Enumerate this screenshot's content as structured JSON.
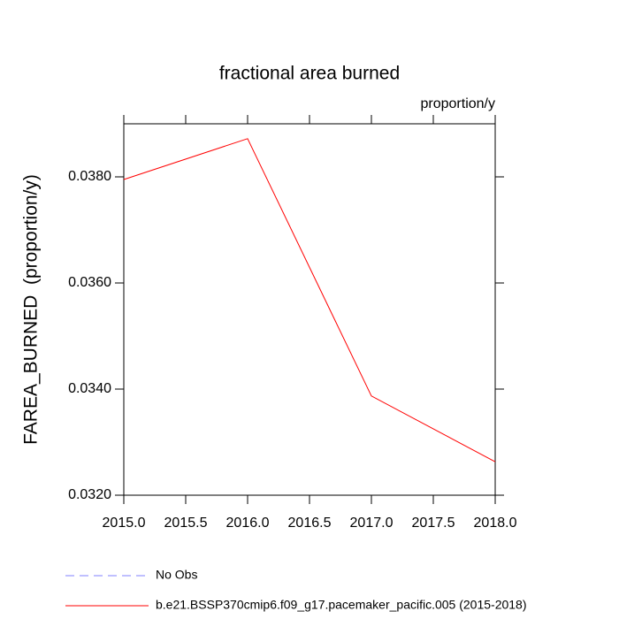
{
  "chart_data": {
    "type": "line",
    "title": "fractional area burned",
    "units_label": "proportion/y",
    "ylabel": "FAREA_BURNED  (proportion/y)",
    "x": [
      2015,
      2016,
      2017,
      2018
    ],
    "series": [
      {
        "name": "No Obs",
        "color": "#8080ff",
        "dashed": true,
        "values": [
          null,
          null,
          null,
          null
        ]
      },
      {
        "name": "b.e21.BSSP370cmip6.f09_g17.pacemaker_pacific.005 (2015-2018)",
        "color": "#ff0000",
        "dashed": false,
        "values": [
          0.03795,
          0.03872,
          0.03387,
          0.03263
        ]
      }
    ],
    "xlim": [
      2015,
      2018
    ],
    "xticks": [
      {
        "value": 2015,
        "label": "2015.0"
      },
      {
        "value": 2015.5,
        "label": "2015.5"
      },
      {
        "value": 2016,
        "label": "2016.0"
      },
      {
        "value": 2016.5,
        "label": "2016.5"
      },
      {
        "value": 2017,
        "label": "2017.0"
      },
      {
        "value": 2017.5,
        "label": "2017.5"
      },
      {
        "value": 2018,
        "label": "2018.0"
      }
    ],
    "ylim": [
      0.032,
      0.039
    ],
    "yticks": [
      {
        "value": 0.032,
        "label": "0.0320"
      },
      {
        "value": 0.034,
        "label": "0.0340"
      },
      {
        "value": 0.036,
        "label": "0.0360"
      },
      {
        "value": 0.038,
        "label": "0.0380"
      }
    ],
    "grid": false
  }
}
